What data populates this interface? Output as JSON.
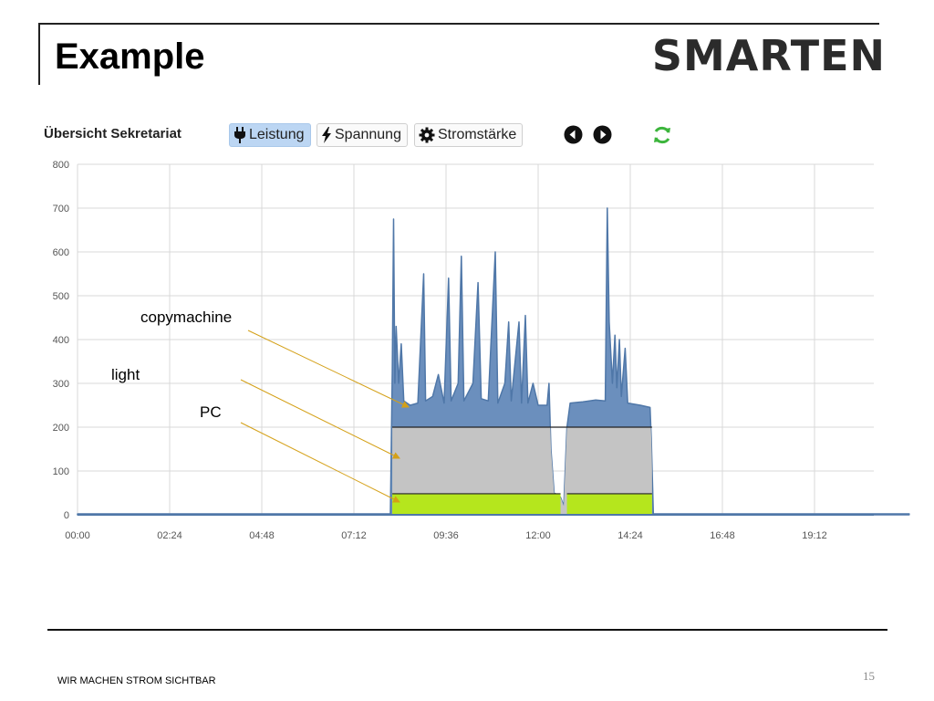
{
  "slide": {
    "title": "Example",
    "brand": "SMARTEN",
    "footer": "WIR MACHEN STROM SICHTBAR",
    "page_number": "15"
  },
  "toolbar": {
    "title": "Übersicht Sekretariat",
    "buttons": [
      {
        "label": "Leistung",
        "icon": "plug-icon",
        "active": true
      },
      {
        "label": "Spannung",
        "icon": "lightning-icon",
        "active": false
      },
      {
        "label": "Stromstärke",
        "icon": "gear-icon",
        "active": false
      }
    ],
    "nav": [
      "previous-icon",
      "next-icon"
    ],
    "refresh_icon": "refresh-icon"
  },
  "colors": {
    "copymachine": "#6b8fbd",
    "copymachine_line": "#4f77a8",
    "light": "#c4c4c4",
    "pc": "#b5e61d",
    "grid": "#d8d8d8",
    "axis_text": "#555555",
    "arrow": "#d4a017"
  },
  "chart_data": {
    "type": "area",
    "title": "Übersicht Sekretariat",
    "xlabel": "",
    "ylabel": "",
    "xlim_minutes": [
      0,
      1300
    ],
    "ylim": [
      0,
      800
    ],
    "y_ticks": [
      0,
      100,
      200,
      300,
      400,
      500,
      600,
      700,
      800
    ],
    "x_ticks": [
      "00:00",
      "02:24",
      "04:48",
      "07:12",
      "09:36",
      "12:00",
      "14:24",
      "16:48",
      "19:12"
    ],
    "grid": true,
    "series": [
      {
        "name": "PC",
        "segments": [
          {
            "start": "08:12",
            "end": "12:35",
            "value": 48
          },
          {
            "start": "12:45",
            "end": "14:58",
            "value": 48
          }
        ]
      },
      {
        "name": "light",
        "segments": [
          {
            "start": "08:12",
            "end": "14:58",
            "value": 200
          }
        ]
      },
      {
        "name": "copymachine",
        "total_power": [
          [
            "00:00",
            2
          ],
          [
            "08:09",
            2
          ],
          [
            "08:12",
            330
          ],
          [
            "08:14",
            675
          ],
          [
            "08:16",
            300
          ],
          [
            "08:18",
            430
          ],
          [
            "08:22",
            300
          ],
          [
            "08:26",
            390
          ],
          [
            "08:30",
            260
          ],
          [
            "08:40",
            250
          ],
          [
            "08:52",
            255
          ],
          [
            "09:01",
            550
          ],
          [
            "09:04",
            260
          ],
          [
            "09:15",
            270
          ],
          [
            "09:24",
            320
          ],
          [
            "09:33",
            255
          ],
          [
            "09:40",
            540
          ],
          [
            "09:44",
            260
          ],
          [
            "09:55",
            300
          ],
          [
            "10:00",
            590
          ],
          [
            "10:04",
            260
          ],
          [
            "10:18",
            300
          ],
          [
            "10:26",
            530
          ],
          [
            "10:31",
            265
          ],
          [
            "10:42",
            260
          ],
          [
            "10:53",
            600
          ],
          [
            "10:57",
            255
          ],
          [
            "11:08",
            300
          ],
          [
            "11:14",
            440
          ],
          [
            "11:18",
            260
          ],
          [
            "11:30",
            440
          ],
          [
            "11:34",
            255
          ],
          [
            "11:40",
            455
          ],
          [
            "11:44",
            255
          ],
          [
            "11:52",
            300
          ],
          [
            "12:00",
            250
          ],
          [
            "12:14",
            250
          ],
          [
            "12:17",
            300
          ],
          [
            "12:20",
            150
          ],
          [
            "12:25",
            50
          ],
          [
            "12:35",
            40
          ],
          [
            "12:40",
            20
          ],
          [
            "12:45",
            200
          ],
          [
            "12:50",
            255
          ],
          [
            "13:10",
            258
          ],
          [
            "13:30",
            262
          ],
          [
            "13:45",
            260
          ],
          [
            "13:48",
            700
          ],
          [
            "13:51",
            440
          ],
          [
            "13:56",
            300
          ],
          [
            "14:00",
            410
          ],
          [
            "14:03",
            290
          ],
          [
            "14:07",
            400
          ],
          [
            "14:10",
            270
          ],
          [
            "14:16",
            380
          ],
          [
            "14:20",
            255
          ],
          [
            "14:40",
            250
          ],
          [
            "14:55",
            245
          ],
          [
            "14:57",
            170
          ],
          [
            "15:00",
            2
          ],
          [
            "21:40",
            2
          ]
        ]
      }
    ],
    "annotations": [
      {
        "text": "copymachine",
        "series": "copymachine"
      },
      {
        "text": "light",
        "series": "light"
      },
      {
        "text": "PC",
        "series": "PC"
      }
    ]
  }
}
